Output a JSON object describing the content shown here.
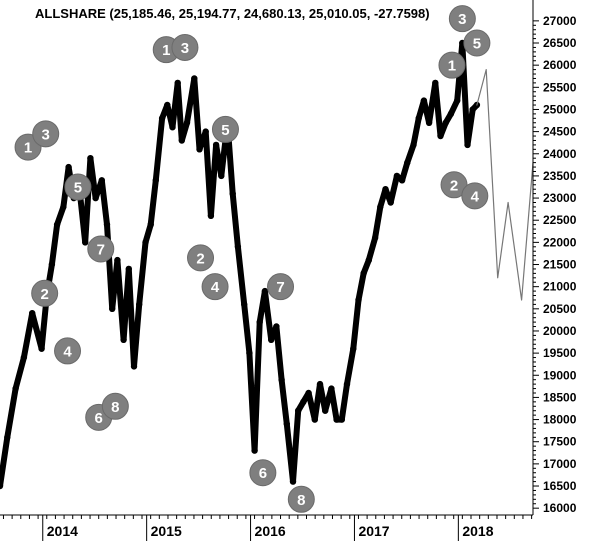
{
  "chart_data": {
    "type": "line",
    "title": "ALLSHARE (25,185.46, 25,194.77, 24,680.13, 25,010.05, -27.7598)",
    "xlabel": "",
    "ylabel": "",
    "ylim": [
      15575,
      27200
    ],
    "xlim": [
      2013.55,
      2018.68
    ],
    "yticks": [
      16000,
      16500,
      17000,
      17500,
      18000,
      18500,
      19000,
      19500,
      20000,
      20500,
      21000,
      21500,
      22000,
      22500,
      23000,
      23500,
      24000,
      24500,
      25000,
      25500,
      26000,
      26500,
      27000
    ],
    "yticklabels": [
      "16000",
      "16500",
      "17000",
      "17500",
      "18000",
      "18500",
      "19000",
      "19500",
      "20000",
      "20500",
      "21000",
      "21500",
      "22000",
      "22500",
      "23000",
      "23500",
      "24000",
      "24500",
      "25000",
      "25500",
      "26000",
      "26500",
      "27000"
    ],
    "xticks": [
      2014.0,
      2015.0,
      2016.0,
      2017.0,
      2018.0
    ],
    "xticklabels": [
      "2014",
      "2015",
      "2016",
      "2017",
      "2018"
    ],
    "grid": false,
    "series": [
      {
        "style": "thick-black",
        "x": [
          2013.55,
          2013.62,
          2013.7,
          2013.78,
          2013.86,
          2013.95,
          2014.0,
          2014.05,
          2014.1,
          2014.16,
          2014.21,
          2014.26,
          2014.31,
          2014.37,
          2014.42,
          2014.47,
          2014.53,
          2014.58,
          2014.63,
          2014.68,
          2014.74,
          2014.79,
          2014.84,
          2014.89,
          2014.95,
          2015.0,
          2015.05,
          2015.11,
          2015.16,
          2015.21,
          2015.26,
          2015.3,
          2015.35,
          2015.42,
          2015.47,
          2015.53,
          2015.58,
          2015.63,
          2015.68,
          2015.74,
          2015.79,
          2015.84,
          2015.9,
          2015.95,
          2016.0,
          2016.05,
          2016.1,
          2016.16,
          2016.21,
          2016.26,
          2016.31,
          2016.37,
          2016.42,
          2016.47,
          2016.52,
          2016.58,
          2016.63,
          2016.68,
          2016.74,
          2016.79,
          2016.84,
          2016.89,
          2016.95,
          2017.0,
          2017.05,
          2017.1,
          2017.16,
          2017.21,
          2017.26,
          2017.31,
          2017.37,
          2017.42,
          2017.47,
          2017.53,
          2017.58,
          2017.63,
          2017.68,
          2017.74,
          2017.79,
          2017.84,
          2017.89,
          2017.95,
          2018.0,
          2018.05,
          2018.1,
          2018.14
        ],
        "y": [
          16500,
          17600,
          18700,
          19400,
          20400,
          19600,
          20800,
          21500,
          22400,
          22800,
          23700,
          23000,
          23300,
          22000,
          23900,
          23000,
          23400,
          22400,
          20500,
          21600,
          19800,
          21400,
          19200,
          20600,
          22000,
          22400,
          23400,
          24800,
          25100,
          24600,
          25600,
          24300,
          24700,
          25700,
          24100,
          24500,
          22600,
          24200,
          23500,
          24700,
          23100,
          21900,
          20600,
          19500,
          17300,
          20200,
          20900,
          19800,
          20100,
          18900,
          17900,
          16600,
          18200,
          18400,
          18600,
          18000,
          18800,
          18200,
          18700,
          18000,
          18000,
          18800,
          19600,
          20700,
          21300,
          21600,
          22100,
          22800,
          23200,
          22900,
          23500,
          23400,
          23800,
          24200,
          24800,
          25200,
          24700,
          25600,
          24400,
          24700,
          24900,
          25200,
          26500,
          24200,
          25000,
          25100
        ]
      },
      {
        "style": "thin-gray-projection",
        "x": [
          2018.14,
          2018.23,
          2018.34,
          2018.44,
          2018.57,
          2018.68
        ],
        "y": [
          25100,
          25900,
          21200,
          22900,
          20700,
          23800
        ]
      }
    ],
    "annotations": [
      {
        "text": "1",
        "x": 2013.82,
        "y": 24150
      },
      {
        "text": "3",
        "x": 2013.99,
        "y": 24450
      },
      {
        "text": "5",
        "x": 2014.3,
        "y": 23250
      },
      {
        "text": "2",
        "x": 2013.98,
        "y": 20850
      },
      {
        "text": "4",
        "x": 2014.2,
        "y": 19550
      },
      {
        "text": "7",
        "x": 2014.52,
        "y": 21850
      },
      {
        "text": "6",
        "x": 2014.5,
        "y": 18050
      },
      {
        "text": "8",
        "x": 2014.66,
        "y": 18300
      },
      {
        "text": "1",
        "x": 2015.15,
        "y": 26350
      },
      {
        "text": "3",
        "x": 2015.33,
        "y": 26400
      },
      {
        "text": "5",
        "x": 2015.72,
        "y": 24550
      },
      {
        "text": "2",
        "x": 2015.48,
        "y": 21650
      },
      {
        "text": "4",
        "x": 2015.62,
        "y": 21000
      },
      {
        "text": "7",
        "x": 2016.25,
        "y": 21000
      },
      {
        "text": "6",
        "x": 2016.08,
        "y": 16800
      },
      {
        "text": "8",
        "x": 2016.45,
        "y": 16200
      },
      {
        "text": "1",
        "x": 2017.9,
        "y": 26000
      },
      {
        "text": "3",
        "x": 2018.0,
        "y": 27050
      },
      {
        "text": "5",
        "x": 2018.14,
        "y": 26500
      },
      {
        "text": "2",
        "x": 2017.92,
        "y": 23300
      },
      {
        "text": "4",
        "x": 2018.12,
        "y": 23050
      }
    ]
  }
}
